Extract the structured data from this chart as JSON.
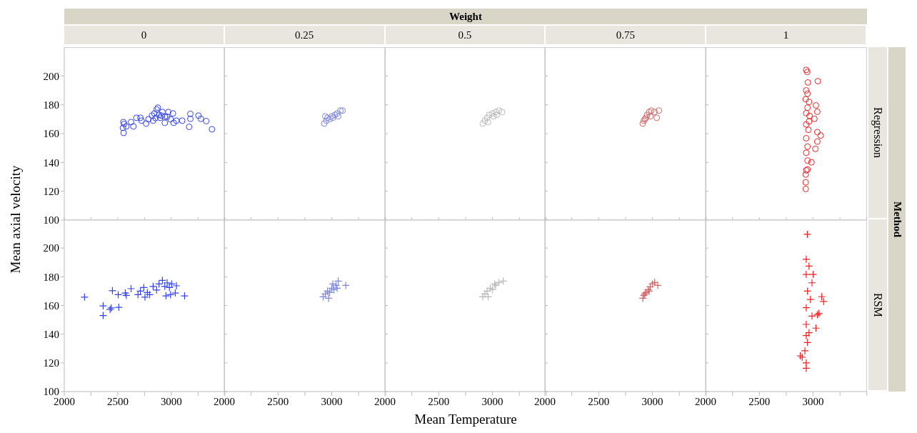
{
  "chart_data": [
    {
      "type": "scatter",
      "title": "0",
      "ylabel": "Mean axial velocity",
      "annotations": [
        "Weight",
        "Method"
      ],
      "tick_labels": "y",
      "marker": "circle",
      "color": "#3344ee",
      "xlim": [
        2000,
        3500
      ],
      "xticks": [
        2000,
        {
          "value": 2250,
          "label": null
        },
        2500,
        {
          "value": 2750,
          "label": null
        },
        3000,
        {
          "value": 3250,
          "label": null
        },
        {
          "value": 3500,
          "label": null
        }
      ],
      "ylim": [
        100,
        220
      ],
      "yticks": [
        100,
        120,
        140,
        160,
        180,
        200
      ],
      "x": [
        2554,
        2548,
        2552,
        2559,
        2580,
        2624,
        2646,
        2674,
        2711,
        2722,
        2765,
        2787,
        2820,
        2841,
        2874,
        2863,
        2885,
        2896,
        2917,
        2939,
        2961,
        2972,
        2993,
        3015,
        3022,
        3048,
        3102,
        3167,
        3178,
        3178,
        3254,
        3276,
        3326,
        3380,
        2852,
        2907,
        2939,
        2830
      ],
      "values": [
        160.5,
        164,
        168,
        166.7,
        165,
        168,
        165,
        171,
        171,
        169,
        167,
        170,
        172.5,
        174,
        178,
        176.7,
        173,
        171,
        175,
        167.5,
        171.7,
        175,
        170,
        174,
        167.5,
        169,
        169,
        164.7,
        170.3,
        173.7,
        172.5,
        170.3,
        168.7,
        163,
        170.8,
        172.5,
        171.7,
        169
      ]
    },
    {
      "type": "scatter",
      "title": "0.25",
      "tick_labels": false,
      "marker": "circle",
      "color": "#7b86dc",
      "xlim": [
        2000,
        3500
      ],
      "xticks": [
        2000,
        {
          "value": 2250,
          "label": null
        },
        2500,
        {
          "value": 2750,
          "label": null
        },
        3000,
        {
          "value": 3250,
          "label": null
        },
        {
          "value": 3500,
          "label": null
        }
      ],
      "ylim": [
        100,
        220
      ],
      "yticks": [
        100,
        120,
        140,
        160,
        180,
        200
      ],
      "x": [
        2930,
        2950,
        2960,
        2980,
        3000,
        3010,
        3030,
        3050,
        3080,
        3100,
        2940,
        3060
      ],
      "values": [
        167,
        169,
        171,
        170,
        172,
        171,
        173,
        174,
        176,
        176,
        172,
        172
      ]
    },
    {
      "type": "scatter",
      "title": "0.5",
      "tick_labels": false,
      "marker": "circle",
      "color": "#b8b8b8",
      "xlim": [
        2000,
        3500
      ],
      "xticks": [
        2000,
        {
          "value": 2250,
          "label": null
        },
        2500,
        {
          "value": 2750,
          "label": null
        },
        3000,
        {
          "value": 3250,
          "label": null
        },
        {
          "value": 3500,
          "label": null
        }
      ],
      "ylim": [
        100,
        220
      ],
      "yticks": [
        100,
        120,
        140,
        160,
        180,
        200
      ],
      "x": [
        2910,
        2930,
        2950,
        2970,
        3000,
        3030,
        3060,
        3090,
        2960,
        3010,
        3040
      ],
      "values": [
        167,
        169,
        171,
        173,
        174,
        175,
        176,
        175,
        168,
        172,
        173
      ]
    },
    {
      "type": "scatter",
      "title": "0.75",
      "tick_labels": false,
      "marker": "circle",
      "color": "#d06666",
      "xlim": [
        2000,
        3500
      ],
      "xticks": [
        2000,
        {
          "value": 2250,
          "label": null
        },
        2500,
        {
          "value": 2750,
          "label": null
        },
        3000,
        {
          "value": 3250,
          "label": null
        },
        {
          "value": 3500,
          "label": null
        }
      ],
      "ylim": [
        100,
        220
      ],
      "yticks": [
        100,
        120,
        140,
        160,
        180,
        200
      ],
      "x": [
        2910,
        2920,
        2940,
        2950,
        2970,
        2990,
        3020,
        3060,
        2930,
        2980,
        3040
      ],
      "values": [
        167,
        169,
        171,
        173,
        175,
        176,
        175,
        176,
        170,
        172,
        171
      ]
    },
    {
      "type": "scatter",
      "title": "1",
      "y2label": "Regression",
      "tick_labels": false,
      "marker": "circle",
      "color": "#ee2222",
      "xlim": [
        2000,
        3500
      ],
      "xticks": [
        2000,
        {
          "value": 2250,
          "label": null
        },
        2500,
        {
          "value": 2750,
          "label": null
        },
        3000,
        {
          "value": 3250,
          "label": null
        },
        {
          "value": 3500,
          "label": null
        }
      ],
      "ylim": [
        100,
        220
      ],
      "yticks": [
        100,
        120,
        140,
        160,
        180,
        200
      ],
      "x": [
        2936,
        2946,
        3044,
        2951,
        2936,
        2948,
        2931,
        2962,
        3026,
        3039,
        2936,
        2967,
        3012,
        2936,
        2956,
        3039,
        3070,
        3039,
        2936,
        2948,
        3021,
        2936,
        2948,
        2985,
        2936,
        2948,
        2931,
        2931,
        2931,
        2962,
        2948
      ],
      "values": [
        204.2,
        202.8,
        196.4,
        195.5,
        190,
        187.7,
        183.9,
        182,
        179.6,
        175.2,
        174.2,
        172.3,
        170.3,
        166.4,
        162.6,
        161,
        158.7,
        154.5,
        156.8,
        151,
        149.4,
        146.7,
        141.3,
        140.1,
        134.5,
        135.1,
        131.6,
        126.2,
        121.6,
        168.4,
        178
      ]
    },
    {
      "type": "scatter",
      "tick_labels": "xy",
      "marker": "cross",
      "color": "#3344ee",
      "xlim": [
        2000,
        3500
      ],
      "xticks": [
        2000,
        {
          "value": 2250,
          "label": null
        },
        2500,
        {
          "value": 2750,
          "label": null
        },
        3000,
        {
          "value": 3250,
          "label": null
        },
        {
          "value": 3500,
          "label": null
        }
      ],
      "ylim": [
        100,
        220
      ],
      "yticks": [
        100,
        120,
        140,
        160,
        180,
        200
      ],
      "x": [
        2189,
        2363,
        2363,
        2428,
        2439,
        2509,
        2450,
        2504,
        2570,
        2580,
        2624,
        2689,
        2711,
        2743,
        2754,
        2776,
        2798,
        2830,
        2863,
        2885,
        2917,
        2939,
        2950,
        2961,
        2983,
        2993,
        3004,
        3037,
        3048,
        3124
      ],
      "values": [
        165.8,
        153,
        159.7,
        157.2,
        158.3,
        158.7,
        170.3,
        167.5,
        168.7,
        167,
        171.7,
        167.5,
        170,
        172.5,
        165.8,
        169,
        167.5,
        173.3,
        170.8,
        175,
        177.5,
        173.3,
        166.7,
        175.8,
        172.5,
        167.5,
        175,
        168.7,
        173.7,
        166.7
      ]
    },
    {
      "type": "scatter",
      "tick_labels": "x",
      "marker": "cross",
      "color": "#7b86dc",
      "xlim": [
        2000,
        3500
      ],
      "xticks": [
        2000,
        {
          "value": 2250,
          "label": null
        },
        2500,
        {
          "value": 2750,
          "label": null
        },
        3000,
        {
          "value": 3250,
          "label": null
        },
        {
          "value": 3500,
          "label": null
        }
      ],
      "ylim": [
        100,
        220
      ],
      "yticks": [
        100,
        120,
        140,
        160,
        180,
        200
      ],
      "x": [
        2920,
        2940,
        2960,
        2980,
        3000,
        3020,
        3040,
        3060,
        3050,
        2970,
        3130,
        3010
      ],
      "values": [
        166,
        168,
        170,
        169,
        172,
        171,
        174,
        177,
        172,
        165,
        174,
        175
      ]
    },
    {
      "type": "scatter",
      "xlabel": "Mean Temperature",
      "tick_labels": "x",
      "marker": "cross",
      "color": "#b8b8b8",
      "xlim": [
        2000,
        3500
      ],
      "xticks": [
        2000,
        {
          "value": 2250,
          "label": null
        },
        2500,
        {
          "value": 2750,
          "label": null
        },
        3000,
        {
          "value": 3250,
          "label": null
        },
        {
          "value": 3500,
          "label": null
        }
      ],
      "ylim": [
        100,
        220
      ],
      "yticks": [
        100,
        120,
        140,
        160,
        180,
        200
      ],
      "x": [
        2910,
        2930,
        2950,
        2980,
        3000,
        3030,
        3060,
        3100,
        2960,
        3020
      ],
      "values": [
        166,
        168,
        170,
        172,
        171,
        174,
        176,
        177,
        166,
        175
      ]
    },
    {
      "type": "scatter",
      "tick_labels": "x",
      "marker": "cross",
      "color": "#d06666",
      "xlim": [
        2000,
        3500
      ],
      "xticks": [
        2000,
        {
          "value": 2250,
          "label": null
        },
        2500,
        {
          "value": 2750,
          "label": null
        },
        3000,
        {
          "value": 3250,
          "label": null
        },
        {
          "value": 3500,
          "label": null
        }
      ],
      "ylim": [
        100,
        220
      ],
      "yticks": [
        100,
        120,
        140,
        160,
        180,
        200
      ],
      "x": [
        2910,
        2920,
        2940,
        2960,
        2980,
        3000,
        3020,
        3050,
        2930,
        2970
      ],
      "values": [
        165,
        167,
        169,
        171,
        173,
        175,
        176,
        174,
        168,
        170
      ]
    },
    {
      "type": "scatter",
      "y2label": "RSM",
      "tick_labels": "x",
      "marker": "cross",
      "color": "#ee2222",
      "xlim": [
        2000,
        3500
      ],
      "xticks": [
        2000,
        {
          "value": 2250,
          "label": null
        },
        2500,
        {
          "value": 2750,
          "label": null
        },
        3000,
        {
          "value": 3250,
          "label": null
        },
        {
          "value": 3500,
          "label": null
        }
      ],
      "ylim": [
        100,
        220
      ],
      "yticks": [
        100,
        120,
        140,
        160,
        180,
        200
      ],
      "x": [
        2946,
        2936,
        2962,
        3000,
        2936,
        2990,
        2948,
        3080,
        3098,
        3054,
        3039,
        2936,
        3026,
        2936,
        2962,
        2948,
        2924,
        2881,
        2899,
        2936,
        2936,
        2975,
        2990,
        2936
      ],
      "values": [
        209.6,
        192.2,
        187.4,
        181.6,
        181.6,
        175.8,
        170,
        166.1,
        162.8,
        154.5,
        153.5,
        158.4,
        144.2,
        146.8,
        141,
        134.2,
        128.4,
        124.9,
        123.9,
        120,
        116.2,
        164.2,
        152.6,
        139
      ]
    }
  ]
}
